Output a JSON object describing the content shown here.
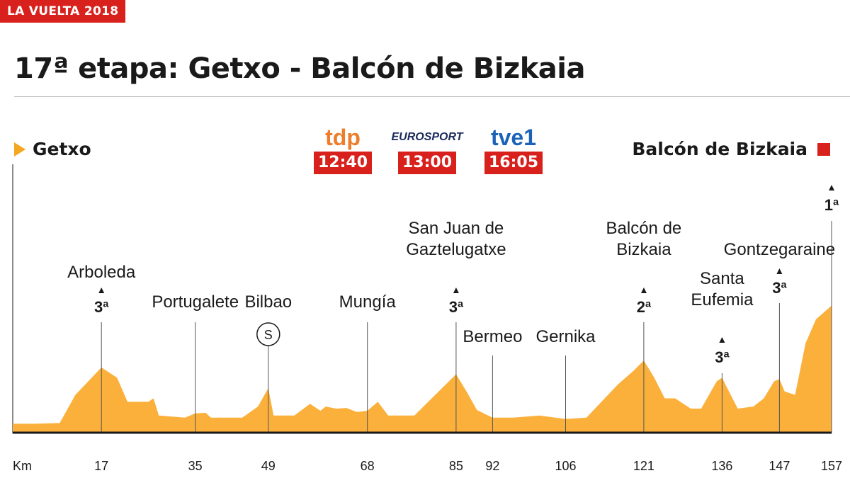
{
  "header": {
    "tag": "LA VUELTA 2018",
    "title": "17ª etapa: Getxo - Balcón de Bizkaia"
  },
  "start": {
    "label": "Getxo"
  },
  "finish": {
    "label": "Balcón de Bizkaia"
  },
  "broadcasts": [
    {
      "channel": "tdp",
      "time": "12:40"
    },
    {
      "channel": "EUROSPORT",
      "time": "13:00"
    },
    {
      "channel": "tve1",
      "time": "16:05"
    }
  ],
  "colors": {
    "accent": "#d8201c",
    "profile_fill": "#fbb03b",
    "start_marker": "#f5a623"
  },
  "chart_data": {
    "type": "area",
    "xlabel": "Km",
    "x_ticks": [
      17,
      35,
      49,
      68,
      85,
      92,
      106,
      121,
      136,
      147,
      157
    ],
    "xlim": [
      0,
      157
    ],
    "profile": [
      [
        0,
        0.13
      ],
      [
        4,
        0.13
      ],
      [
        9,
        0.14
      ],
      [
        12,
        0.55
      ],
      [
        17,
        0.95
      ],
      [
        20,
        0.8
      ],
      [
        22,
        0.45
      ],
      [
        26,
        0.45
      ],
      [
        27,
        0.5
      ],
      [
        28,
        0.25
      ],
      [
        33,
        0.22
      ],
      [
        35,
        0.28
      ],
      [
        37,
        0.29
      ],
      [
        38,
        0.22
      ],
      [
        44,
        0.22
      ],
      [
        47,
        0.38
      ],
      [
        49,
        0.65
      ],
      [
        50,
        0.25
      ],
      [
        54,
        0.25
      ],
      [
        57,
        0.42
      ],
      [
        59,
        0.32
      ],
      [
        60,
        0.38
      ],
      [
        62,
        0.35
      ],
      [
        64,
        0.36
      ],
      [
        66,
        0.3
      ],
      [
        68,
        0.32
      ],
      [
        70,
        0.45
      ],
      [
        72,
        0.25
      ],
      [
        77,
        0.25
      ],
      [
        81,
        0.55
      ],
      [
        85,
        0.85
      ],
      [
        87,
        0.6
      ],
      [
        89,
        0.33
      ],
      [
        92,
        0.22
      ],
      [
        96,
        0.22
      ],
      [
        101,
        0.25
      ],
      [
        106,
        0.2
      ],
      [
        110,
        0.22
      ],
      [
        116,
        0.7
      ],
      [
        119,
        0.9
      ],
      [
        121,
        1.05
      ],
      [
        123,
        0.8
      ],
      [
        125,
        0.5
      ],
      [
        127,
        0.5
      ],
      [
        130,
        0.35
      ],
      [
        132,
        0.35
      ],
      [
        135,
        0.75
      ],
      [
        136,
        0.8
      ],
      [
        137,
        0.65
      ],
      [
        139,
        0.35
      ],
      [
        142,
        0.38
      ],
      [
        144,
        0.5
      ],
      [
        146,
        0.75
      ],
      [
        147,
        0.78
      ],
      [
        148,
        0.6
      ],
      [
        150,
        0.55
      ],
      [
        152,
        1.3
      ],
      [
        154,
        1.65
      ],
      [
        157,
        1.85
      ]
    ],
    "places": [
      {
        "name": [
          "Arboleda"
        ],
        "km": 17,
        "cat": "3ª",
        "line_from": 0.95
      },
      {
        "name": [
          "Portugalete"
        ],
        "km": 35,
        "cat": "",
        "line_from": 0.28
      },
      {
        "name": [
          "Bilbao"
        ],
        "km": 49,
        "cat": "",
        "line_from": 0.65,
        "sprint": "S"
      },
      {
        "name": [
          "Mungía"
        ],
        "km": 68,
        "cat": "",
        "line_from": 0.32
      },
      {
        "name": [
          "San Juan de",
          "Gaztelugatxe"
        ],
        "km": 85,
        "cat": "3ª",
        "line_from": 0.85
      },
      {
        "name": [
          "Bermeo"
        ],
        "km": 92,
        "cat": "",
        "line_from": 0.22
      },
      {
        "name": [
          "Gernika"
        ],
        "km": 106,
        "cat": "",
        "line_from": 0.2
      },
      {
        "name": [
          "Balcón de",
          "Bizkaia"
        ],
        "km": 121,
        "cat": "2ª",
        "line_from": 1.05
      },
      {
        "name": [
          "Santa",
          "Eufemia"
        ],
        "km": 136,
        "cat": "3ª",
        "line_from": 0.8
      },
      {
        "name": [
          "Gontzegaraine"
        ],
        "km": 147,
        "cat": "3ª",
        "line_from": 0.78
      },
      {
        "name": [
          ""
        ],
        "km": 157,
        "cat": "1ª",
        "line_from": 1.85
      }
    ]
  }
}
